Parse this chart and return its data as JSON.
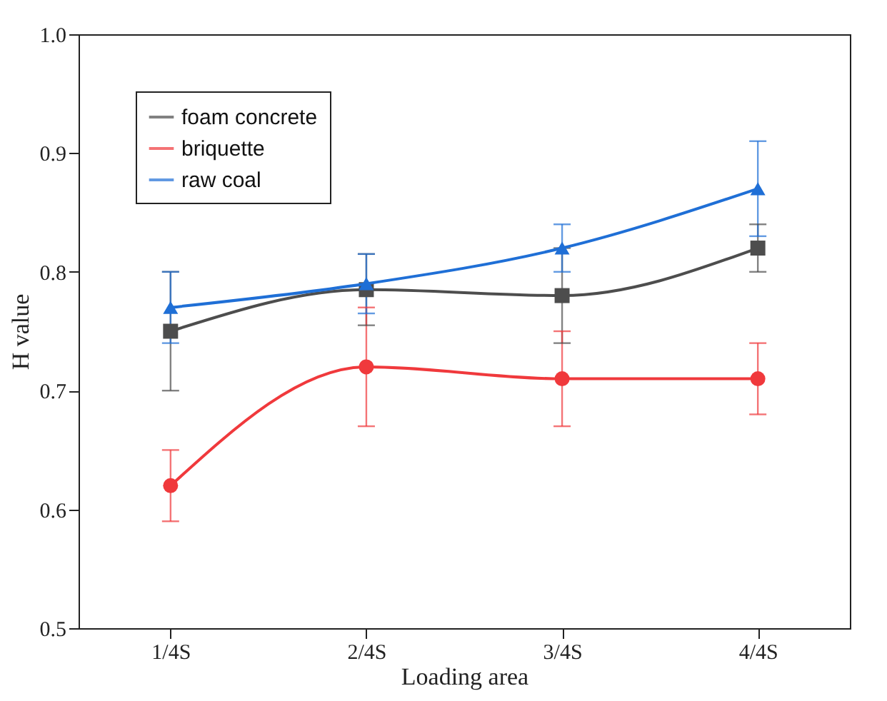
{
  "chart_data": {
    "type": "line",
    "xlabel": "Loading area",
    "ylabel": "H value",
    "categories": [
      "1/4S",
      "2/4S",
      "3/4S",
      "4/4S"
    ],
    "ylim": [
      0.5,
      1.0
    ],
    "yticks": [
      0.5,
      0.6,
      0.7,
      0.8,
      0.9,
      {
        "value": 1.0,
        "label": "1.0"
      }
    ],
    "grid": false,
    "legend": "top left",
    "line_style": "solid",
    "series": [
      {
        "name": "foam concrete",
        "color": "#4d4d4d",
        "marker": "square",
        "values": [
          0.75,
          0.785,
          0.78,
          0.82
        ],
        "errors": [
          0.05,
          0.03,
          0.04,
          0.02
        ]
      },
      {
        "name": "briquette",
        "color": "#f0393c",
        "marker": "circle",
        "values": [
          0.62,
          0.72,
          0.71,
          0.71
        ],
        "errors": [
          0.03,
          0.05,
          0.04,
          0.03
        ]
      },
      {
        "name": "raw coal",
        "color": "#1f6fd6",
        "marker": "triangle",
        "values": [
          0.77,
          0.79,
          0.82,
          0.87
        ],
        "errors": [
          0.03,
          0.025,
          0.02,
          0.04
        ]
      }
    ]
  }
}
